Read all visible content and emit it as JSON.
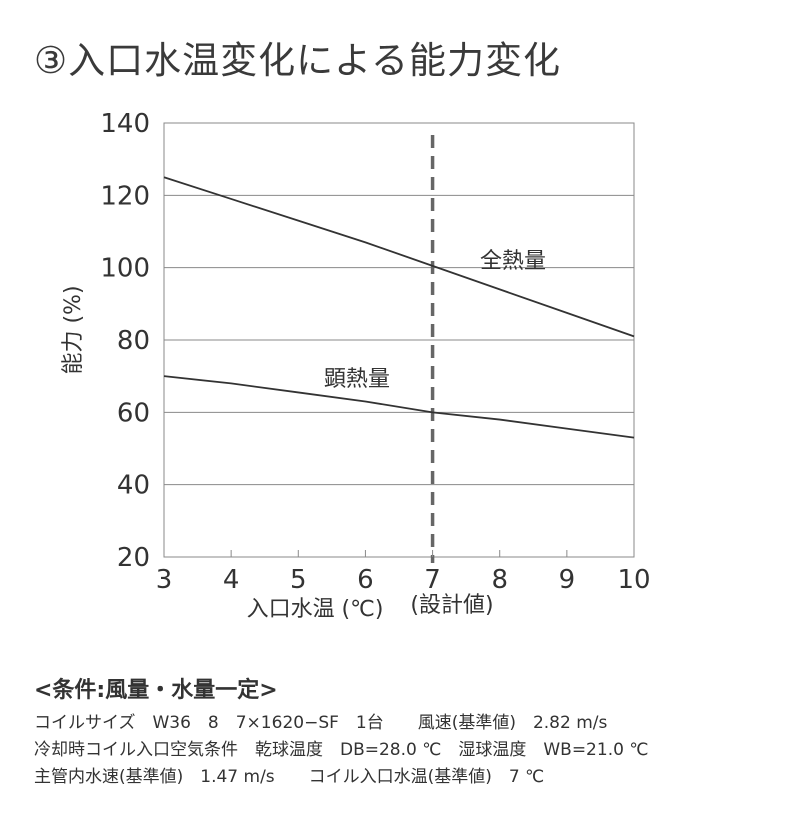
{
  "title": "③入口水温変化による能力変化",
  "chart_data": {
    "type": "line",
    "xlabel": "入口水温 (℃)",
    "ylabel": "能力 (%)",
    "xlim": [
      3,
      10
    ],
    "ylim": [
      20,
      140
    ],
    "x_ticks": [
      "3",
      "4",
      "5",
      "6",
      "7",
      "8",
      "9",
      "10"
    ],
    "y_ticks": [
      "20",
      "40",
      "60",
      "80",
      "100",
      "120",
      "140"
    ],
    "grid": "horizontal",
    "series": [
      {
        "name": "全熱量",
        "x": [
          3,
          4,
          5,
          6,
          7,
          8,
          9,
          10
        ],
        "values": [
          125,
          119,
          113,
          107,
          100.5,
          94,
          87.5,
          81
        ],
        "color": "#333333"
      },
      {
        "name": "顕熱量",
        "x": [
          3,
          4,
          5,
          6,
          7,
          8,
          9,
          10
        ],
        "values": [
          70,
          68,
          65.5,
          63,
          60,
          58,
          55.5,
          53
        ],
        "color": "#333333"
      }
    ],
    "reference_line": {
      "x": 7,
      "label": "(設計値)",
      "style": "dashed",
      "color": "#666666"
    }
  },
  "conditions": {
    "heading": "<条件:風量・水量一定>",
    "lines": [
      "コイルサイズ　W36　8　7×1620−SF　1台　　風速(基準値)　2.82 m/s",
      "冷却時コイル入口空気条件　乾球温度　DB=28.0 ℃　湿球温度　WB=21.0 ℃",
      "主管内水速(基準値)　1.47 m/s　　コイル入口水温(基準値)　7 ℃"
    ]
  }
}
